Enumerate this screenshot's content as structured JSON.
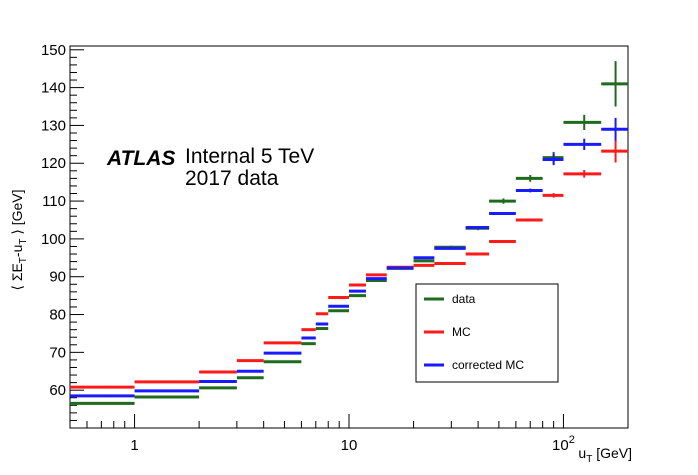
{
  "chart_data": {
    "type": "scatter",
    "xscale": "log",
    "xlim": [
      0.5,
      200
    ],
    "ylim": [
      50,
      151
    ],
    "xlabel_main": "u",
    "xlabel_sub": "T",
    "xlabel_unit": " [GeV]",
    "ylabel": "⟨ ΣE_T-u_T ⟩ [GeV]",
    "ylabel_parts": [
      "⟨ ΣE",
      "T",
      "-u",
      "T",
      " ⟩ [GeV]"
    ],
    "xticks": [
      {
        "value": 1,
        "label": "1"
      },
      {
        "value": 10,
        "label": "10"
      },
      {
        "value": 100,
        "label": "10",
        "sup": "2"
      }
    ],
    "yticks": [
      60,
      70,
      80,
      90,
      100,
      110,
      120,
      130,
      140,
      150
    ],
    "atlas_label": "ATLAS",
    "atlas_text_line1": "Internal 5 TeV",
    "atlas_text_line2": "2017 data",
    "legend_placement": "center-right",
    "grid": false,
    "series": [
      {
        "name": "data",
        "color": "#1e6b1e",
        "points": [
          {
            "x": 0.75,
            "xlo": 0.5,
            "xhi": 1,
            "y": 56.5,
            "yerr": 0.3
          },
          {
            "x": 1.5,
            "xlo": 1,
            "xhi": 2,
            "y": 58.2,
            "yerr": 0.3
          },
          {
            "x": 2.5,
            "xlo": 2,
            "xhi": 3,
            "y": 60.6,
            "yerr": 0.3
          },
          {
            "x": 3.5,
            "xlo": 3,
            "xhi": 4,
            "y": 63.3,
            "yerr": 0.3
          },
          {
            "x": 5,
            "xlo": 4,
            "xhi": 6,
            "y": 67.5,
            "yerr": 0.3
          },
          {
            "x": 6.5,
            "xlo": 6,
            "xhi": 7,
            "y": 72.3,
            "yerr": 0.3
          },
          {
            "x": 7.5,
            "xlo": 7,
            "xhi": 8,
            "y": 76.3,
            "yerr": 0.3
          },
          {
            "x": 9,
            "xlo": 8,
            "xhi": 10,
            "y": 81.0,
            "yerr": 0.3
          },
          {
            "x": 11,
            "xlo": 10,
            "xhi": 12,
            "y": 85.0,
            "yerr": 0.3
          },
          {
            "x": 13.5,
            "xlo": 12,
            "xhi": 15,
            "y": 89.0,
            "yerr": 0.3
          },
          {
            "x": 17.5,
            "xlo": 15,
            "xhi": 20,
            "y": 92.2,
            "yerr": 0.3
          },
          {
            "x": 22.5,
            "xlo": 20,
            "xhi": 25,
            "y": 94.2,
            "yerr": 0.3
          },
          {
            "x": 30,
            "xlo": 25,
            "xhi": 35,
            "y": 97.8,
            "yerr": 0.4
          },
          {
            "x": 40,
            "xlo": 35,
            "xhi": 45,
            "y": 102.8,
            "yerr": 0.5
          },
          {
            "x": 52.5,
            "xlo": 45,
            "xhi": 60,
            "y": 110.0,
            "yerr": 0.7
          },
          {
            "x": 70,
            "xlo": 60,
            "xhi": 80,
            "y": 116.0,
            "yerr": 0.9
          },
          {
            "x": 90,
            "xlo": 80,
            "xhi": 100,
            "y": 121.5,
            "yerr": 1.5
          },
          {
            "x": 125,
            "xlo": 100,
            "xhi": 150,
            "y": 130.8,
            "yerr": 2.0
          },
          {
            "x": 175,
            "xlo": 150,
            "xhi": 200,
            "y": 141.0,
            "yerr": 6.0
          }
        ]
      },
      {
        "name": "MC",
        "color": "#ff1a1a",
        "points": [
          {
            "x": 0.75,
            "xlo": 0.5,
            "xhi": 1,
            "y": 60.8,
            "yerr": 0.2
          },
          {
            "x": 1.5,
            "xlo": 1,
            "xhi": 2,
            "y": 62.2,
            "yerr": 0.2
          },
          {
            "x": 2.5,
            "xlo": 2,
            "xhi": 3,
            "y": 64.8,
            "yerr": 0.2
          },
          {
            "x": 3.5,
            "xlo": 3,
            "xhi": 4,
            "y": 67.8,
            "yerr": 0.2
          },
          {
            "x": 5,
            "xlo": 4,
            "xhi": 6,
            "y": 72.5,
            "yerr": 0.2
          },
          {
            "x": 6.5,
            "xlo": 6,
            "xhi": 7,
            "y": 76.0,
            "yerr": 0.2
          },
          {
            "x": 7.5,
            "xlo": 7,
            "xhi": 8,
            "y": 80.2,
            "yerr": 0.2
          },
          {
            "x": 9,
            "xlo": 8,
            "xhi": 10,
            "y": 84.5,
            "yerr": 0.2
          },
          {
            "x": 11,
            "xlo": 10,
            "xhi": 12,
            "y": 87.8,
            "yerr": 0.2
          },
          {
            "x": 13.5,
            "xlo": 12,
            "xhi": 15,
            "y": 90.5,
            "yerr": 0.2
          },
          {
            "x": 17.5,
            "xlo": 15,
            "xhi": 20,
            "y": 92.5,
            "yerr": 0.2
          },
          {
            "x": 22.5,
            "xlo": 20,
            "xhi": 25,
            "y": 93.0,
            "yerr": 0.2
          },
          {
            "x": 30,
            "xlo": 25,
            "xhi": 35,
            "y": 93.5,
            "yerr": 0.2
          },
          {
            "x": 40,
            "xlo": 35,
            "xhi": 45,
            "y": 96.0,
            "yerr": 0.3
          },
          {
            "x": 52.5,
            "xlo": 45,
            "xhi": 60,
            "y": 99.3,
            "yerr": 0.3
          },
          {
            "x": 70,
            "xlo": 60,
            "xhi": 80,
            "y": 105.0,
            "yerr": 0.4
          },
          {
            "x": 90,
            "xlo": 80,
            "xhi": 100,
            "y": 111.5,
            "yerr": 0.6
          },
          {
            "x": 125,
            "xlo": 100,
            "xhi": 150,
            "y": 117.2,
            "yerr": 1.0
          },
          {
            "x": 175,
            "xlo": 150,
            "xhi": 200,
            "y": 123.2,
            "yerr": 3.0
          }
        ]
      },
      {
        "name": "corrected MC",
        "color": "#1a1aff",
        "points": [
          {
            "x": 0.75,
            "xlo": 0.5,
            "xhi": 1,
            "y": 58.5,
            "yerr": 0.2
          },
          {
            "x": 1.5,
            "xlo": 1,
            "xhi": 2,
            "y": 59.8,
            "yerr": 0.2
          },
          {
            "x": 2.5,
            "xlo": 2,
            "xhi": 3,
            "y": 62.3,
            "yerr": 0.2
          },
          {
            "x": 3.5,
            "xlo": 3,
            "xhi": 4,
            "y": 65.0,
            "yerr": 0.2
          },
          {
            "x": 5,
            "xlo": 4,
            "xhi": 6,
            "y": 69.8,
            "yerr": 0.2
          },
          {
            "x": 6.5,
            "xlo": 6,
            "xhi": 7,
            "y": 73.8,
            "yerr": 0.2
          },
          {
            "x": 7.5,
            "xlo": 7,
            "xhi": 8,
            "y": 77.5,
            "yerr": 0.2
          },
          {
            "x": 9,
            "xlo": 8,
            "xhi": 10,
            "y": 82.2,
            "yerr": 0.2
          },
          {
            "x": 11,
            "xlo": 10,
            "xhi": 12,
            "y": 86.2,
            "yerr": 0.2
          },
          {
            "x": 13.5,
            "xlo": 12,
            "xhi": 15,
            "y": 89.5,
            "yerr": 0.2
          },
          {
            "x": 17.5,
            "xlo": 15,
            "xhi": 20,
            "y": 92.3,
            "yerr": 0.2
          },
          {
            "x": 22.5,
            "xlo": 20,
            "xhi": 25,
            "y": 95.0,
            "yerr": 0.2
          },
          {
            "x": 30,
            "xlo": 25,
            "xhi": 35,
            "y": 97.5,
            "yerr": 0.2
          },
          {
            "x": 40,
            "xlo": 35,
            "xhi": 45,
            "y": 103.0,
            "yerr": 0.3
          },
          {
            "x": 52.5,
            "xlo": 45,
            "xhi": 60,
            "y": 106.7,
            "yerr": 0.3
          },
          {
            "x": 70,
            "xlo": 60,
            "xhi": 80,
            "y": 112.8,
            "yerr": 0.5
          },
          {
            "x": 90,
            "xlo": 80,
            "xhi": 100,
            "y": 121.0,
            "yerr": 1.5
          },
          {
            "x": 125,
            "xlo": 100,
            "xhi": 150,
            "y": 125.0,
            "yerr": 1.5
          },
          {
            "x": 175,
            "xlo": 150,
            "xhi": 200,
            "y": 129.0,
            "yerr": 3.0
          }
        ]
      }
    ]
  }
}
